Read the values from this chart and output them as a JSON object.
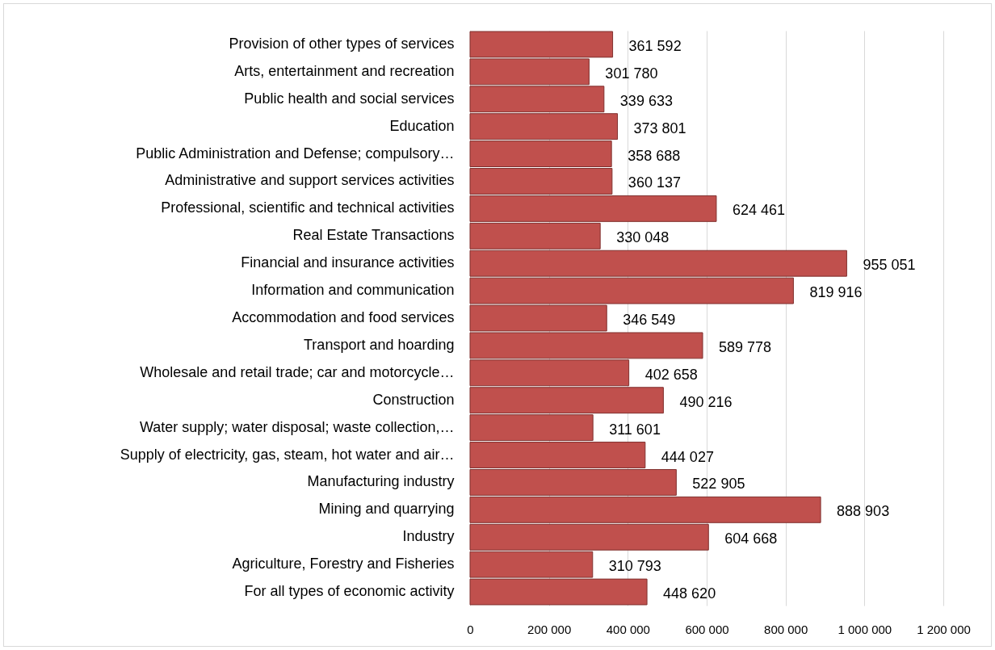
{
  "chart_data": {
    "type": "bar",
    "orientation": "horizontal",
    "categories": [
      "Provision of other types of services",
      "Arts, entertainment and recreation",
      "Public health and social services",
      "Education",
      "Public Administration and Defense; compulsory…",
      "Administrative and support services activities",
      "Professional, scientific and technical activities",
      "Real Estate Transactions",
      "Financial and insurance activities",
      "Information and communication",
      "Accommodation and food services",
      "Transport and hoarding",
      "Wholesale and retail trade; car and motorcycle…",
      "Construction",
      "Water supply; water disposal; waste collection,…",
      "Supply of electricity, gas, steam, hot water and air…",
      "Manufacturing industry",
      "Mining and quarrying",
      "Industry",
      "Agriculture, Forestry and Fisheries",
      "For all types of economic activity"
    ],
    "values": [
      361592,
      301780,
      339633,
      373801,
      358688,
      360137,
      624461,
      330048,
      955051,
      819916,
      346549,
      589778,
      402658,
      490216,
      311601,
      444027,
      522905,
      888903,
      604668,
      310793,
      448620
    ],
    "value_labels": [
      "361 592",
      "301 780",
      "339 633",
      "373 801",
      "358 688",
      "360 137",
      "624 461",
      "330 048",
      "955 051",
      "819 916",
      "346 549",
      "589 778",
      "402 658",
      "490 216",
      "311 601",
      "444 027",
      "522 905",
      "888 903",
      "604 668",
      "310 793",
      "448 620"
    ],
    "color": "#c0504d",
    "xlim": [
      0,
      1200000
    ],
    "xticks": [
      0,
      {
        "value": 200000,
        "label": "200 000"
      },
      {
        "value": 400000,
        "label": "400 000"
      },
      {
        "value": 600000,
        "label": "600 000"
      },
      {
        "value": 800000,
        "label": "800 000"
      },
      {
        "value": 1000000,
        "label": "1 000 000"
      },
      {
        "value": 1200000,
        "label": "1 200 000"
      }
    ],
    "grid": "x"
  }
}
